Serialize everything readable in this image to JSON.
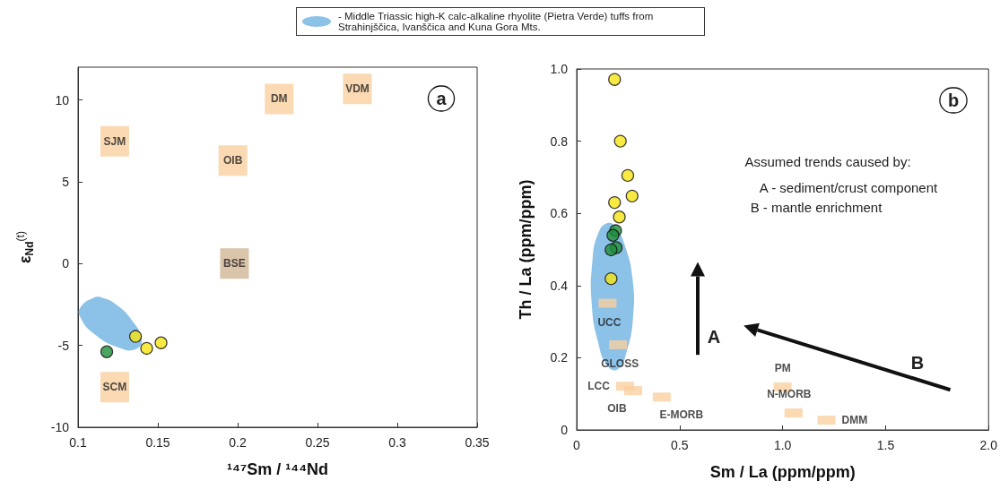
{
  "chart_data": [
    {
      "type": "scatter",
      "xlabel": "¹⁴⁷Sm / ¹⁴⁴Nd",
      "ylabel": "ε$_{Nd}$$^{(t)}$",
      "xlim": [
        0.1,
        0.35
      ],
      "ylim": [
        -10,
        12
      ],
      "xticks": [
        0.1,
        0.15,
        0.2,
        0.25,
        0.3,
        0.35
      ],
      "yticks": [
        -10,
        -5,
        0,
        5,
        10
      ],
      "grid": false,
      "legend": "top",
      "annotations": [
        "a"
      ],
      "series": [
        {
          "type": "area",
          "name": "- Middle Triassic high-K calc-alkaline rhyolite (Pietra Verde) tuffs from Strahinjščica, Ivanščica and Kuna Gora Mts.",
          "color": "#8dc2e8",
          "x": [
            0.1095,
            0.1014,
            0.1014,
            0.1095,
            0.1257,
            0.1358,
            0.1399,
            0.1338,
            0.1237,
            0.1156
          ],
          "values": [
            -2.1,
            -2.69,
            -3.27,
            -4.25,
            -5.14,
            -5.24,
            -4.65,
            -3.47,
            -2.49,
            -2.1
          ]
        },
        {
          "type": "scatter",
          "marker": "square",
          "x": [
            0.123,
            0.197,
            0.226,
            0.275,
            0.198,
            0.123
          ],
          "values": [
            7.47,
            6.29,
            10.06,
            10.67,
            0,
            -7.55
          ],
          "colors": [
            "#f9cfa0",
            "#f9cfa0",
            "#f9cfa0",
            "#f9cfa0",
            "#d1b595",
            "#f9cfa0"
          ],
          "value_labels": [
            "SJM",
            "OIB",
            "DM",
            "VDM",
            "BSE",
            "SCM"
          ]
        },
        {
          "type": "scatter",
          "marker": "circle",
          "color": "#f7e414",
          "x": [
            0.136,
            0.143,
            0.152
          ],
          "values": [
            -4.45,
            -5.18,
            -4.84
          ]
        },
        {
          "type": "scatter",
          "marker": "circle",
          "color": "#1f8f3a",
          "x": [
            0.118
          ],
          "values": [
            -5.39
          ]
        }
      ]
    },
    {
      "type": "scatter",
      "xlabel": "Sm / La (ppm/ppm)",
      "ylabel": "Th / La (ppm/ppm)",
      "xlim": [
        0,
        2
      ],
      "ylim": [
        0,
        1
      ],
      "xticks": [
        0,
        0.5,
        {
          "value": 1,
          "label": "1.0"
        },
        1.5,
        {
          "value": 2,
          "label": "2.0"
        }
      ],
      "yticks": [
        0,
        0.2,
        0.4,
        0.6,
        0.8,
        {
          "value": 1,
          "label": "1.0"
        }
      ],
      "grid": false,
      "annotations": [
        "b",
        "A",
        "B",
        "Assumed trends caused by:",
        "A - sediment/crust component",
        "B - mantle enrichment"
      ],
      "series": [
        {
          "type": "area",
          "color": "#8dc2e8",
          "x": [
            0.15,
            0.189,
            0.235,
            0.271,
            0.274,
            0.243,
            0.2,
            0.15,
            0.104,
            0.073,
            0.076,
            0.104
          ],
          "values": [
            0.573,
            0.562,
            0.509,
            0.42,
            0.314,
            0.217,
            0.168,
            0.177,
            0.243,
            0.35,
            0.465,
            0.544
          ]
        },
        {
          "type": "scatter",
          "marker": "square",
          "color": "#f9cfa0",
          "x": [
            0.15,
            0.201,
            0.235,
            0.274,
            0.413,
            1.0,
            1.053,
            1.213
          ],
          "values": [
            0.351,
            0.236,
            0.121,
            0.109,
            0.091,
            0.119,
            0.047,
            0.027
          ],
          "value_labels": [
            "UCC",
            "GLOSS",
            "LCC",
            "OIB",
            "E-MORB",
            "PM",
            "N-MORB",
            "DMM"
          ]
        },
        {
          "type": "scatter",
          "marker": "circle",
          "color": "#f7e414",
          "x": [
            0.184,
            0.212,
            0.248,
            0.269,
            0.184,
            0.207,
            0.167
          ],
          "values": [
            0.971,
            0.8,
            0.705,
            0.648,
            0.63,
            0.59,
            0.419
          ]
        },
        {
          "type": "scatter",
          "marker": "circle",
          "color": "#1f8f3a",
          "x": [
            0.189,
            0.176,
            0.192,
            0.167
          ],
          "values": [
            0.552,
            0.539,
            0.505,
            0.499
          ]
        }
      ]
    }
  ]
}
